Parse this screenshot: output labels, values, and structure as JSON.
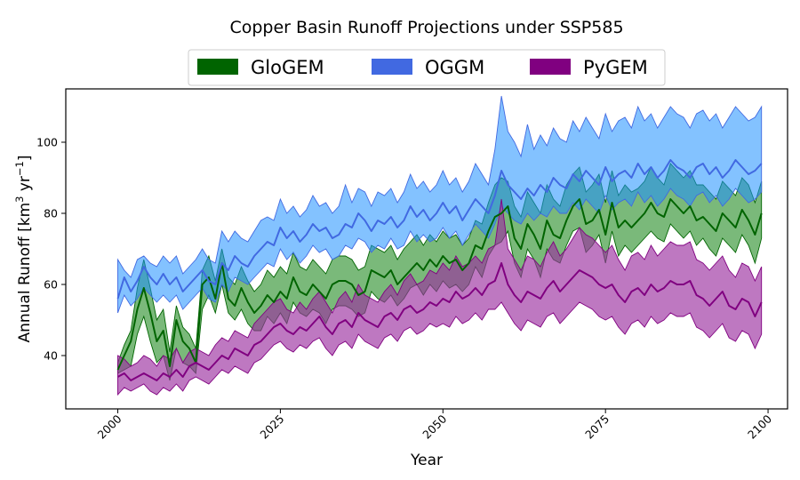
{
  "chart_data": {
    "type": "area",
    "title": "Copper Basin Runoff Projections under SSP585",
    "xlabel": "Year",
    "ylabel": "Annual Runoff [km",
    "ylabel_sup1": "3",
    "ylabel_mid": " yr",
    "ylabel_sup2": "−1",
    "ylabel_end": "]",
    "xlim": [
      1992,
      2103
    ],
    "ylim": [
      25,
      115
    ],
    "xticks": [
      2000,
      2025,
      2050,
      2075,
      2100
    ],
    "yticks": [
      40,
      60,
      80,
      100
    ],
    "grid": false,
    "legend_position": "top-center",
    "legend_entries": [
      {
        "name": "GloGEM",
        "color": "#006400"
      },
      {
        "name": "OGGM",
        "color": "#4169E1"
      },
      {
        "name": "PyGEM",
        "color": "#800080"
      }
    ],
    "x": [
      2000,
      2001,
      2002,
      2003,
      2004,
      2005,
      2006,
      2007,
      2008,
      2009,
      2010,
      2011,
      2012,
      2013,
      2014,
      2015,
      2016,
      2017,
      2018,
      2019,
      2020,
      2021,
      2022,
      2023,
      2024,
      2025,
      2026,
      2027,
      2028,
      2029,
      2030,
      2031,
      2032,
      2033,
      2034,
      2035,
      2036,
      2037,
      2038,
      2039,
      2040,
      2041,
      2042,
      2043,
      2044,
      2045,
      2046,
      2047,
      2048,
      2049,
      2050,
      2051,
      2052,
      2053,
      2054,
      2055,
      2056,
      2057,
      2058,
      2059,
      2060,
      2061,
      2062,
      2063,
      2064,
      2065,
      2066,
      2067,
      2068,
      2069,
      2070,
      2071,
      2072,
      2073,
      2074,
      2075,
      2076,
      2077,
      2078,
      2079,
      2080,
      2081,
      2082,
      2083,
      2084,
      2085,
      2086,
      2087,
      2088,
      2089,
      2090,
      2091,
      2092,
      2093,
      2094,
      2095,
      2096,
      2097,
      2098,
      2099
    ],
    "series": [
      {
        "name": "GloGEM",
        "line_color": "#006400",
        "fill_color": "#228B22",
        "fill_opacity": 0.6,
        "mean": [
          36,
          40,
          44,
          53,
          59,
          52,
          44,
          47,
          37,
          50,
          44,
          42,
          38,
          60,
          62,
          56,
          66,
          56,
          54,
          59,
          55,
          52,
          54,
          57,
          55,
          58,
          56,
          62,
          58,
          57,
          60,
          58,
          56,
          60,
          61,
          61,
          60,
          57,
          58,
          64,
          63,
          62,
          64,
          60,
          62,
          64,
          66,
          64,
          67,
          65,
          68,
          66,
          67,
          64,
          66,
          71,
          70,
          75,
          79,
          80,
          82,
          73,
          70,
          77,
          74,
          70,
          78,
          74,
          73,
          78,
          82,
          84,
          77,
          78,
          81,
          74,
          83,
          76,
          78,
          76,
          78,
          80,
          83,
          80,
          79,
          84,
          82,
          80,
          82,
          78,
          79,
          77,
          75,
          80,
          78,
          76,
          81,
          78,
          74,
          80
        ],
        "lower": [
          35,
          36,
          37,
          46,
          51,
          44,
          38,
          40,
          33,
          42,
          38,
          37,
          35,
          53,
          57,
          52,
          60,
          52,
          50,
          53,
          49,
          47,
          47,
          51,
          49,
          52,
          49,
          55,
          52,
          51,
          53,
          52,
          49,
          53,
          54,
          54,
          53,
          51,
          52,
          58,
          56,
          55,
          57,
          54,
          56,
          59,
          60,
          57,
          60,
          58,
          61,
          59,
          60,
          58,
          60,
          65,
          62,
          68,
          71,
          72,
          75,
          66,
          62,
          70,
          67,
          62,
          70,
          67,
          66,
          71,
          75,
          76,
          69,
          71,
          74,
          66,
          75,
          68,
          71,
          69,
          71,
          73,
          75,
          73,
          72,
          77,
          75,
          73,
          75,
          71,
          73,
          70,
          68,
          73,
          71,
          69,
          74,
          71,
          66,
          73
        ],
        "upper": [
          38,
          43,
          47,
          59,
          67,
          59,
          50,
          53,
          41,
          54,
          48,
          46,
          42,
          64,
          68,
          61,
          70,
          62,
          60,
          65,
          61,
          58,
          60,
          64,
          62,
          65,
          63,
          69,
          65,
          64,
          67,
          65,
          63,
          67,
          68,
          68,
          67,
          64,
          65,
          71,
          70,
          69,
          71,
          67,
          70,
          72,
          74,
          71,
          74,
          72,
          75,
          73,
          74,
          71,
          73,
          78,
          77,
          83,
          88,
          90,
          89,
          82,
          79,
          86,
          83,
          80,
          88,
          84,
          82,
          88,
          91,
          93,
          86,
          88,
          91,
          83,
          92,
          85,
          88,
          86,
          87,
          89,
          93,
          90,
          88,
          94,
          92,
          90,
          92,
          88,
          88,
          86,
          84,
          89,
          87,
          85,
          90,
          88,
          83,
          89
        ]
      },
      {
        "name": "OGGM",
        "line_color": "#4169E1",
        "fill_color": "#1E90FF",
        "fill_opacity": 0.55,
        "mean": [
          56,
          62,
          58,
          61,
          65,
          62,
          60,
          63,
          60,
          62,
          58,
          60,
          62,
          64,
          61,
          60,
          66,
          64,
          68,
          66,
          65,
          68,
          70,
          72,
          71,
          76,
          73,
          75,
          72,
          74,
          77,
          75,
          76,
          73,
          74,
          77,
          76,
          80,
          78,
          75,
          78,
          77,
          79,
          76,
          78,
          82,
          79,
          81,
          78,
          80,
          83,
          80,
          82,
          78,
          81,
          84,
          82,
          80,
          85,
          92,
          88,
          86,
          84,
          87,
          85,
          88,
          86,
          90,
          88,
          87,
          91,
          89,
          92,
          90,
          88,
          93,
          89,
          91,
          92,
          90,
          94,
          91,
          93,
          90,
          92,
          95,
          93,
          92,
          90,
          93,
          94,
          91,
          93,
          90,
          92,
          95,
          93,
          91,
          92,
          94
        ],
        "lower": [
          52,
          57,
          54,
          56,
          59,
          57,
          55,
          57,
          55,
          57,
          53,
          55,
          57,
          59,
          56,
          55,
          60,
          58,
          62,
          61,
          60,
          62,
          64,
          66,
          65,
          70,
          67,
          69,
          66,
          68,
          71,
          69,
          70,
          67,
          68,
          71,
          70,
          73,
          72,
          69,
          71,
          70,
          73,
          70,
          71,
          75,
          72,
          74,
          72,
          73,
          76,
          73,
          75,
          71,
          74,
          77,
          75,
          73,
          77,
          82,
          80,
          78,
          77,
          80,
          78,
          80,
          79,
          82,
          80,
          80,
          83,
          81,
          84,
          82,
          80,
          85,
          81,
          83,
          84,
          82,
          86,
          83,
          85,
          82,
          84,
          87,
          85,
          84,
          82,
          85,
          86,
          83,
          85,
          82,
          84,
          87,
          85,
          83,
          84,
          86
        ],
        "upper": [
          67,
          64,
          62,
          67,
          68,
          66,
          65,
          68,
          66,
          68,
          63,
          65,
          67,
          70,
          67,
          66,
          75,
          72,
          75,
          73,
          72,
          75,
          78,
          79,
          78,
          84,
          80,
          82,
          79,
          81,
          85,
          82,
          83,
          80,
          82,
          88,
          83,
          87,
          86,
          82,
          86,
          85,
          87,
          83,
          86,
          91,
          87,
          89,
          86,
          88,
          92,
          88,
          90,
          86,
          89,
          94,
          91,
          88,
          98,
          113,
          103,
          100,
          96,
          105,
          98,
          102,
          99,
          104,
          101,
          100,
          106,
          103,
          107,
          104,
          101,
          108,
          103,
          106,
          107,
          104,
          110,
          106,
          108,
          104,
          107,
          110,
          108,
          107,
          104,
          108,
          109,
          106,
          108,
          104,
          107,
          110,
          108,
          106,
          107,
          110
        ]
      },
      {
        "name": "PyGEM",
        "line_color": "#800080",
        "fill_color": "#9B30A0",
        "fill_opacity": 0.65,
        "mean": [
          34,
          35,
          33,
          34,
          35,
          34,
          33,
          35,
          34,
          36,
          34,
          37,
          38,
          37,
          36,
          38,
          40,
          39,
          42,
          41,
          40,
          43,
          44,
          46,
          48,
          49,
          47,
          46,
          48,
          47,
          49,
          51,
          48,
          46,
          49,
          50,
          48,
          52,
          50,
          49,
          48,
          51,
          52,
          50,
          53,
          54,
          52,
          53,
          55,
          54,
          56,
          55,
          58,
          56,
          57,
          59,
          57,
          60,
          61,
          66,
          60,
          57,
          55,
          58,
          57,
          56,
          59,
          61,
          58,
          60,
          62,
          64,
          63,
          62,
          60,
          59,
          60,
          57,
          55,
          58,
          59,
          57,
          60,
          58,
          59,
          61,
          60,
          60,
          61,
          57,
          56,
          54,
          56,
          58,
          54,
          53,
          56,
          55,
          51,
          55
        ],
        "lower": [
          29,
          31,
          30,
          31,
          32,
          30,
          29,
          31,
          30,
          32,
          30,
          33,
          34,
          33,
          32,
          34,
          36,
          35,
          37,
          36,
          35,
          38,
          39,
          41,
          43,
          44,
          42,
          41,
          43,
          42,
          44,
          45,
          42,
          40,
          43,
          44,
          42,
          46,
          44,
          43,
          42,
          45,
          46,
          44,
          47,
          48,
          46,
          47,
          49,
          48,
          49,
          48,
          51,
          49,
          50,
          52,
          50,
          53,
          53,
          55,
          52,
          49,
          47,
          50,
          49,
          48,
          51,
          52,
          49,
          51,
          53,
          55,
          54,
          53,
          51,
          50,
          51,
          48,
          46,
          49,
          50,
          48,
          51,
          49,
          50,
          52,
          51,
          51,
          52,
          48,
          47,
          45,
          47,
          49,
          45,
          44,
          47,
          46,
          42,
          46
        ],
        "upper": [
          40,
          39,
          37,
          38,
          40,
          39,
          37,
          40,
          39,
          42,
          38,
          41,
          42,
          41,
          40,
          43,
          45,
          44,
          47,
          46,
          45,
          49,
          51,
          53,
          55,
          56,
          53,
          52,
          55,
          53,
          56,
          58,
          55,
          52,
          56,
          58,
          55,
          60,
          57,
          56,
          55,
          58,
          60,
          57,
          61,
          63,
          60,
          61,
          64,
          63,
          66,
          64,
          68,
          65,
          66,
          68,
          66,
          70,
          71,
          84,
          70,
          67,
          64,
          68,
          67,
          65,
          69,
          72,
          68,
          70,
          73,
          76,
          74,
          73,
          71,
          69,
          71,
          67,
          64,
          68,
          69,
          67,
          71,
          68,
          70,
          72,
          71,
          71,
          72,
          67,
          66,
          64,
          66,
          68,
          64,
          62,
          66,
          65,
          61,
          65
        ]
      }
    ]
  }
}
